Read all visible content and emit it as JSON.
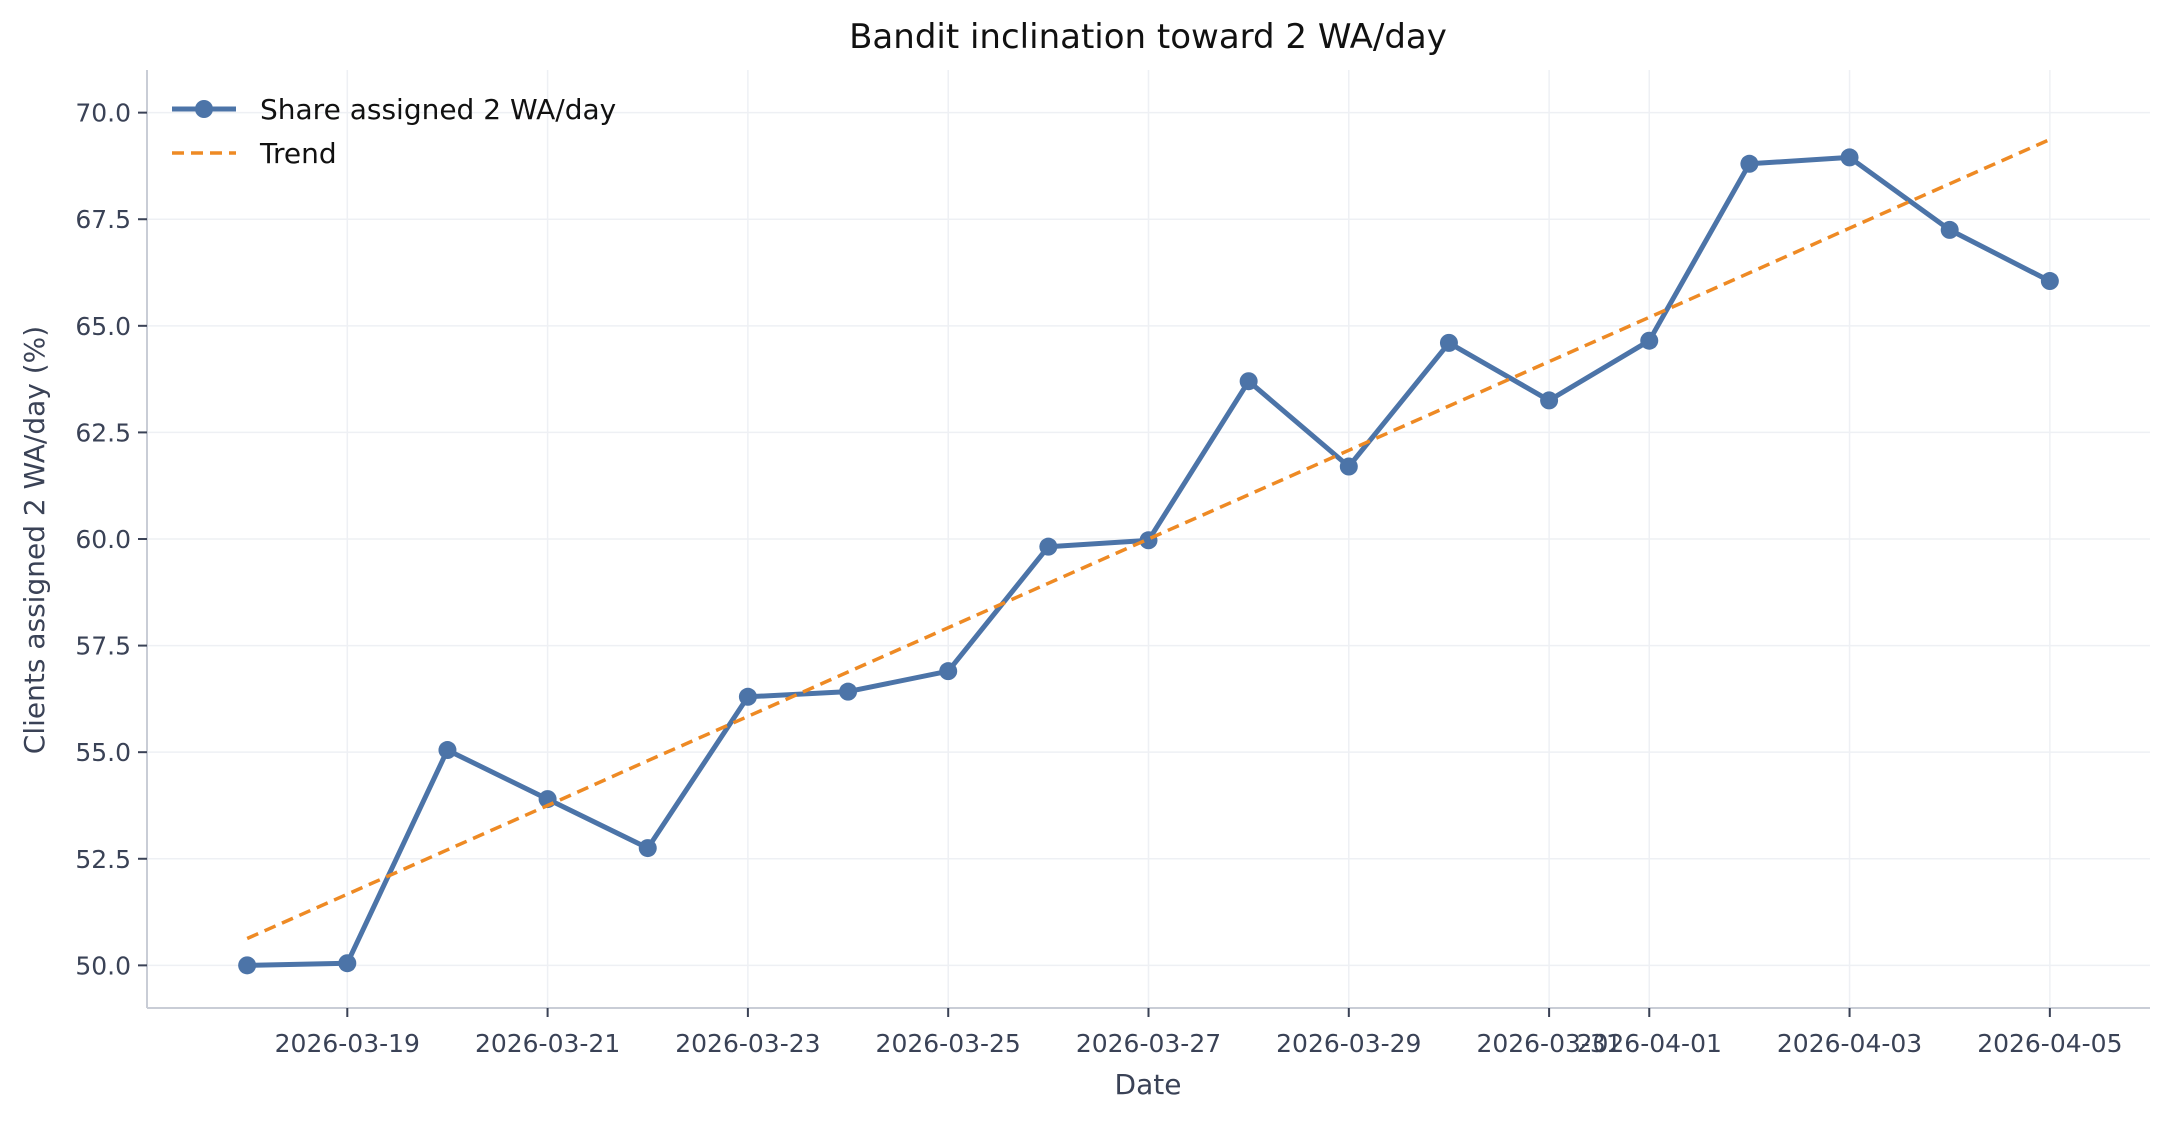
{
  "chart_data": {
    "type": "line",
    "title": "Bandit inclination toward 2 WA/day",
    "xlabel": "Date",
    "ylabel": "Clients assigned 2 WA/day (%)",
    "x": [
      "2026-03-18",
      "2026-03-19",
      "2026-03-20",
      "2026-03-21",
      "2026-03-22",
      "2026-03-23",
      "2026-03-24",
      "2026-03-25",
      "2026-03-26",
      "2026-03-27",
      "2026-03-28",
      "2026-03-29",
      "2026-03-30",
      "2026-03-31",
      "2026-04-01",
      "2026-04-02",
      "2026-04-03",
      "2026-04-04",
      "2026-04-05"
    ],
    "x_ticks": [
      "2026-03-19",
      "2026-03-21",
      "2026-03-23",
      "2026-03-25",
      "2026-03-27",
      "2026-03-29",
      "2026-03-31",
      "2026-04-01",
      "2026-04-03",
      "2026-04-05"
    ],
    "xlim": [
      "2026-03-17",
      "2026-04-06"
    ],
    "y_ticks": [
      50.0,
      52.5,
      55.0,
      57.5,
      60.0,
      62.5,
      65.0,
      67.5,
      70.0
    ],
    "ylim": [
      49.0,
      71.0
    ],
    "grid": true,
    "legend_position": "top-left",
    "series": [
      {
        "name": "Share assigned 2 WA/day",
        "style": "solid-line-with-markers",
        "color": "#4c74a8",
        "values": [
          50.0,
          50.05,
          55.05,
          53.9,
          52.75,
          56.3,
          56.42,
          56.9,
          59.82,
          59.97,
          63.7,
          61.7,
          64.6,
          63.25,
          64.65,
          68.8,
          68.95,
          67.25,
          66.05
        ]
      },
      {
        "name": "Trend",
        "style": "dashed-line",
        "color": "#ee8a24",
        "values": [
          50.63,
          51.67,
          52.71,
          53.75,
          54.8,
          55.84,
          56.88,
          57.92,
          58.96,
          60.0,
          61.04,
          62.08,
          63.12,
          64.16,
          65.2,
          66.24,
          67.29,
          68.33,
          69.37
        ]
      }
    ]
  }
}
